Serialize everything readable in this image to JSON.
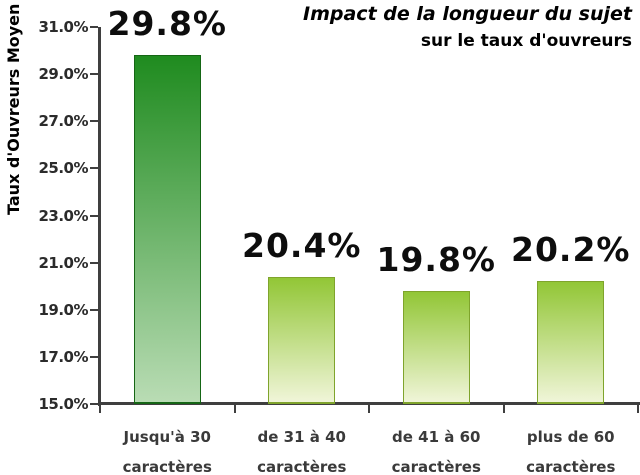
{
  "title": {
    "line1": "Impact de la longueur du sujet",
    "line2": "sur le taux d'ouvreurs"
  },
  "y_axis": {
    "label": "Taux d'Ouvreurs Moyen"
  },
  "chart_data": {
    "type": "bar",
    "title": "Impact de la longueur du sujet sur le taux d'ouvreurs",
    "xlabel": "",
    "ylabel": "Taux d'Ouvreurs Moyen",
    "categories": [
      "Jusqu'à 30 caractères",
      "de 31 à 40 caractères",
      "de 41 à 60 caractères",
      "plus de 60 caractères"
    ],
    "categories_lines": [
      [
        "Jusqu'à 30",
        "caractères"
      ],
      [
        "de 31 à 40",
        "caractères"
      ],
      [
        "de 41 à 60",
        "caractères"
      ],
      [
        "plus de 60",
        "caractères"
      ]
    ],
    "values": [
      29.8,
      20.4,
      19.8,
      20.2
    ],
    "data_labels": [
      "29.8%",
      "20.4%",
      "19.8%",
      "20.2%"
    ],
    "ylim": [
      15,
      31
    ],
    "ytick_step": 2,
    "ytick_labels": [
      "31.0%",
      "29.0%",
      "27.0%",
      "25.0%",
      "23.0%",
      "21.0%",
      "19.0%",
      "17.0%",
      "15.0%"
    ],
    "grid": false,
    "legend": "none",
    "bar_styles": [
      {
        "top": "#1f8b1f",
        "bottom": "#b9dcb4",
        "border": "#156615"
      },
      {
        "top": "#92c636",
        "bottom": "#f0f5d8",
        "border": "#7fa42c"
      },
      {
        "top": "#92c636",
        "bottom": "#f0f5d8",
        "border": "#7fa42c"
      },
      {
        "top": "#92c636",
        "bottom": "#f0f5d8",
        "border": "#7fa42c"
      }
    ],
    "colors": {
      "axis": "#3f3f3f",
      "data_label_text": "#0d0d0d",
      "tick_text": "#2b2b2b",
      "title_text": "#000000"
    }
  }
}
